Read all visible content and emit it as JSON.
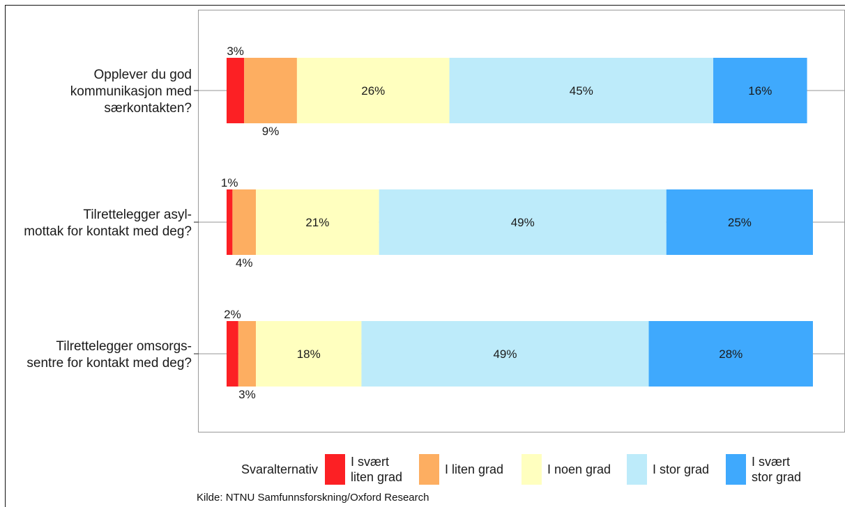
{
  "chart_data": {
    "type": "bar",
    "orientation": "horizontal",
    "stacked": true,
    "categories": [
      [
        "Opplever du god",
        "kommunikasjon med",
        "særkontakten?"
      ],
      [
        "Tilrettelegger asyl-",
        "mottak for kontakt med deg?"
      ],
      [
        "Tilrettelegger omsorgs-",
        "sentre for kontakt med deg?"
      ]
    ],
    "series": [
      {
        "name": "I svært liten grad",
        "legend_lines": [
          "I svært",
          "liten grad"
        ],
        "color": "#fc2024",
        "values": [
          3,
          1,
          2
        ],
        "labels": [
          "3%",
          "1%",
          "2%"
        ],
        "label_position": "above"
      },
      {
        "name": "I liten grad",
        "legend_lines": [
          "I liten grad"
        ],
        "color": "#fdae61",
        "values": [
          9,
          4,
          3
        ],
        "labels": [
          "9%",
          "4%",
          "3%"
        ],
        "label_position": "below"
      },
      {
        "name": "I noen grad",
        "legend_lines": [
          "I noen grad"
        ],
        "color": "#ffffbf",
        "values": [
          26,
          21,
          18
        ],
        "labels": [
          "26%",
          "21%",
          "18%"
        ],
        "label_position": "inside"
      },
      {
        "name": "I stor grad",
        "legend_lines": [
          "I stor grad"
        ],
        "color": "#bdebfa",
        "values": [
          45,
          49,
          49
        ],
        "labels": [
          "45%",
          "49%",
          "49%"
        ],
        "label_position": "inside"
      },
      {
        "name": "I svært stor grad",
        "legend_lines": [
          "I svært",
          "stor grad"
        ],
        "color": "#3fa9fd",
        "values": [
          16,
          25,
          28
        ],
        "labels": [
          "16%",
          "25%",
          "28%"
        ],
        "label_position": "inside"
      }
    ],
    "xlim": [
      0,
      100
    ],
    "legend": {
      "title": "Svaralternativ",
      "position": "bottom"
    },
    "grid": false
  },
  "source": "Kilde: NTNU Samfunnsforskning/Oxford Research"
}
